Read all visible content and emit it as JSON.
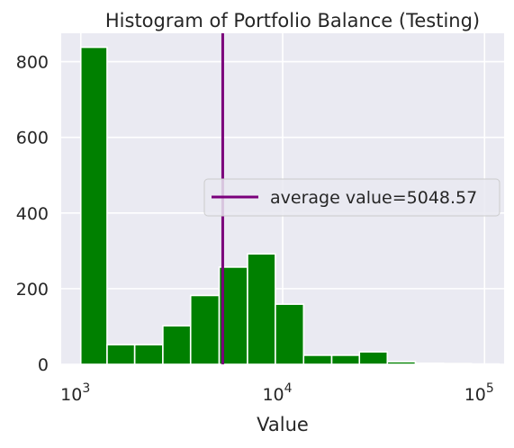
{
  "chart_data": {
    "type": "bar",
    "title": "Histogram of Portfolio Balance (Testing)",
    "xlabel": "Value",
    "ylabel": "",
    "x_scale": "log",
    "xlim": [
      800,
      125000
    ],
    "ylim": [
      0,
      875
    ],
    "x_ticks": [
      {
        "value": 1000,
        "base": "10",
        "exp": "3"
      },
      {
        "value": 10000,
        "base": "10",
        "exp": "4"
      },
      {
        "value": 100000,
        "base": "10",
        "exp": "5"
      }
    ],
    "y_ticks": [
      0,
      200,
      400,
      600,
      800
    ],
    "grid": true,
    "bar_color": "#008000",
    "bins": [
      {
        "x0": 1000,
        "x1": 1350,
        "count": 838
      },
      {
        "x0": 1350,
        "x1": 1850,
        "count": 52
      },
      {
        "x0": 1850,
        "x1": 2550,
        "count": 52
      },
      {
        "x0": 2550,
        "x1": 3500,
        "count": 102
      },
      {
        "x0": 3500,
        "x1": 4850,
        "count": 182
      },
      {
        "x0": 4850,
        "x1": 6700,
        "count": 257
      },
      {
        "x0": 6700,
        "x1": 9200,
        "count": 292
      },
      {
        "x0": 9200,
        "x1": 12700,
        "count": 159
      },
      {
        "x0": 12700,
        "x1": 17500,
        "count": 24
      },
      {
        "x0": 17500,
        "x1": 24000,
        "count": 24
      },
      {
        "x0": 24000,
        "x1": 33000,
        "count": 33
      },
      {
        "x0": 33000,
        "x1": 45500,
        "count": 7
      },
      {
        "x0": 45500,
        "x1": 62500,
        "count": 3
      },
      {
        "x0": 62500,
        "x1": 86000,
        "count": 2
      },
      {
        "x0": 86000,
        "x1": 118000,
        "count": 1
      }
    ],
    "average": {
      "value": 5048.57,
      "label": "average value=5048.57",
      "color": "#7b007b"
    },
    "legend_placement": "center-right"
  }
}
